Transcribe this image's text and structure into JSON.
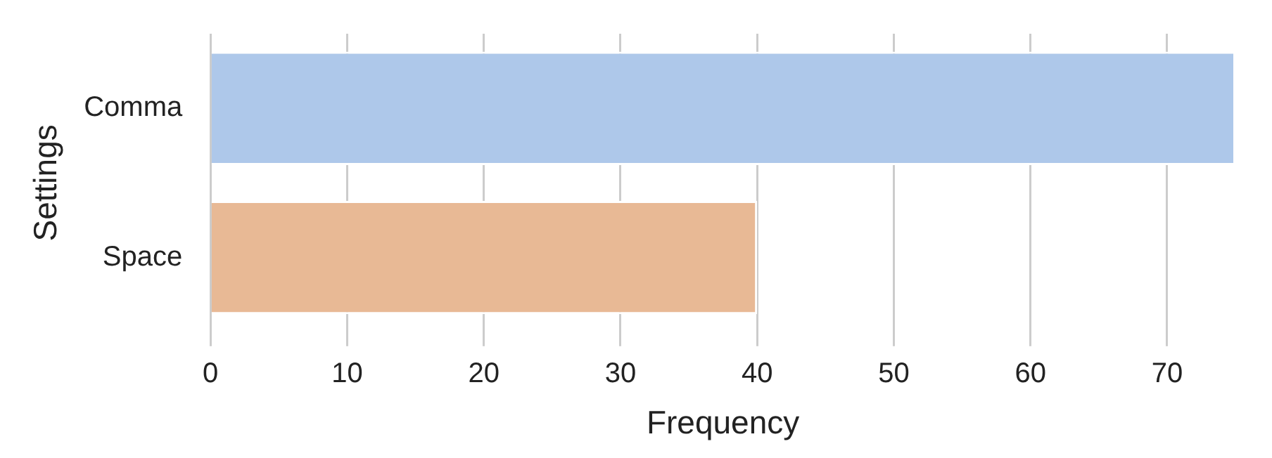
{
  "chart_data": {
    "type": "bar",
    "orientation": "horizontal",
    "xlabel": "Frequency",
    "ylabel": "Settings",
    "categories": [
      "Comma",
      "Space"
    ],
    "values": [
      75,
      40
    ],
    "colors": [
      "#aec8ea",
      "#e8b995"
    ],
    "xlim": [
      0,
      75
    ],
    "xticks": [
      0,
      10,
      20,
      30,
      40,
      50,
      60,
      70
    ],
    "grid": "x",
    "legend": false
  }
}
